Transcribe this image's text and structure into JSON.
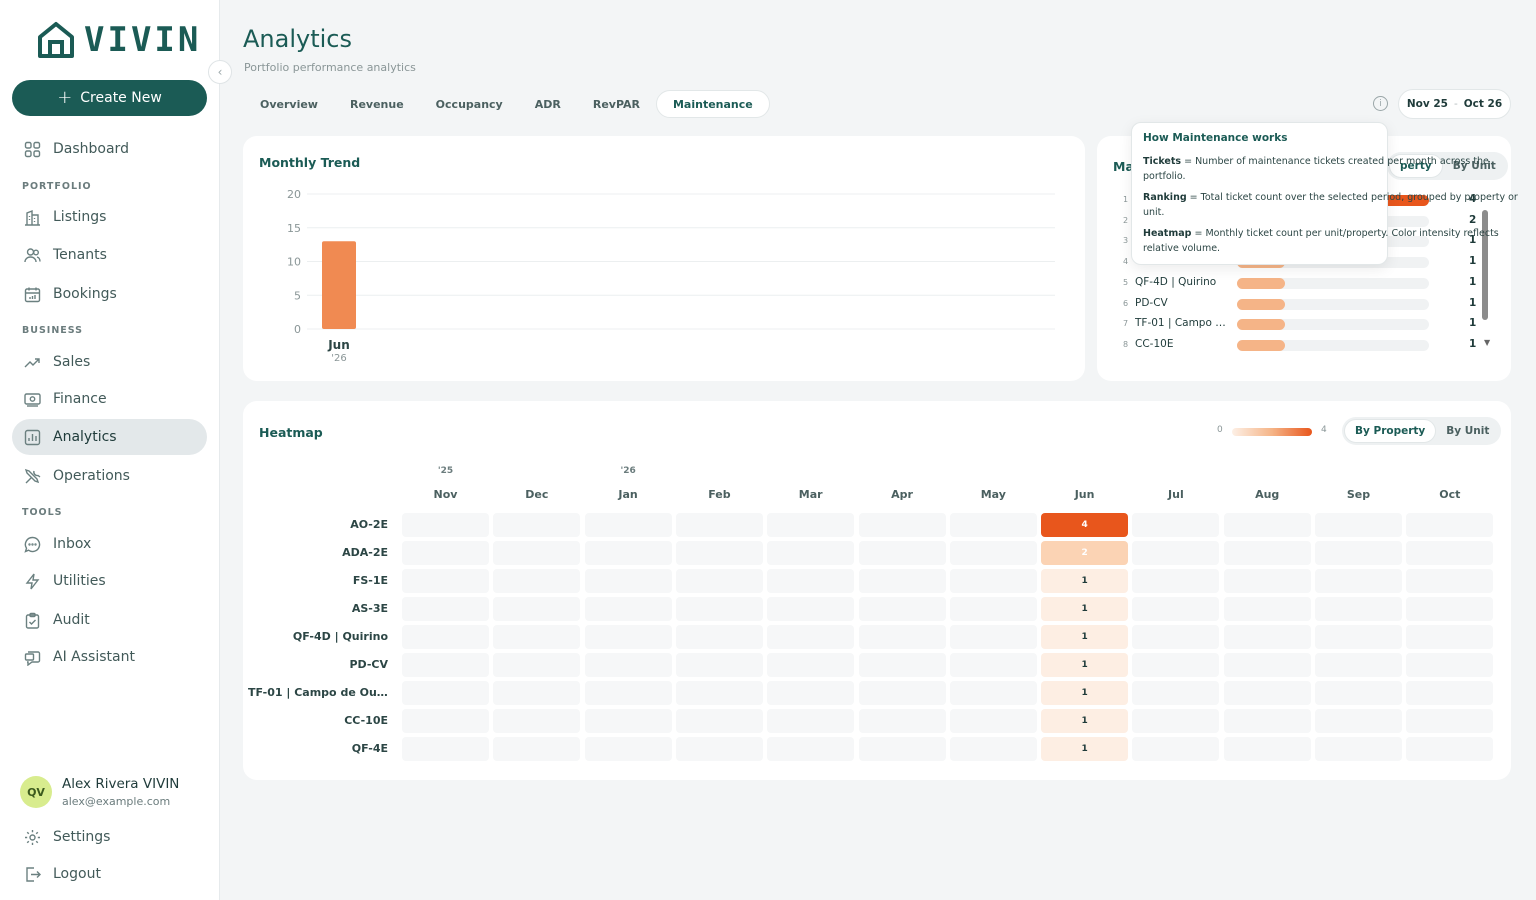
{
  "brand": {
    "name": "VIVIN",
    "accent": "#1b5b55",
    "heat_color": "#e8561c"
  },
  "sidebar": {
    "create_label": "Create New",
    "collapse_icon": "chevron-left-icon",
    "items": [
      {
        "label": "Dashboard",
        "icon": "grid-icon"
      },
      {
        "label": "Listings",
        "icon": "building-icon"
      },
      {
        "label": "Tenants",
        "icon": "users-icon"
      },
      {
        "label": "Bookings",
        "icon": "calendar-icon"
      },
      {
        "label": "Sales",
        "icon": "trend-icon"
      },
      {
        "label": "Finance",
        "icon": "cash-icon"
      },
      {
        "label": "Analytics",
        "icon": "bar-chart-icon"
      },
      {
        "label": "Operations",
        "icon": "tools-icon"
      },
      {
        "label": "Inbox",
        "icon": "chat-icon"
      },
      {
        "label": "Utilities",
        "icon": "bolt-icon"
      },
      {
        "label": "Audit",
        "icon": "clipboard-icon"
      },
      {
        "label": "AI Assistant",
        "icon": "ai-chat-icon"
      }
    ],
    "sections": [
      "PORTFOLIO",
      "BUSINESS",
      "TOOLS"
    ],
    "user": {
      "initials": "QV",
      "name": "Alex Rivera VIVIN",
      "email": "alex@example.com"
    },
    "settings_label": "Settings",
    "logout_label": "Logout"
  },
  "header": {
    "title": "Analytics",
    "subtitle": "Portfolio performance analytics",
    "tabs": [
      "Overview",
      "Revenue",
      "Occupancy",
      "ADR",
      "RevPAR",
      "Maintenance"
    ],
    "active_tab": "Maintenance",
    "date_from": "Nov 25",
    "date_sep": "-",
    "date_to": "Oct 26"
  },
  "trend": {
    "title": "Monthly Trend",
    "chart_data": {
      "type": "bar",
      "categories": [
        "Jun"
      ],
      "category_sublabels": [
        "'26"
      ],
      "values": [
        13
      ],
      "ylim": [
        0,
        20
      ],
      "yticks": [
        0,
        5,
        10,
        15,
        20
      ],
      "grid": true
    }
  },
  "ranking": {
    "title_visible": "Ma",
    "toggle": [
      "By Property",
      "By Unit"
    ],
    "toggle_visible": [
      "perty",
      "By Unit"
    ],
    "rows": [
      {
        "rank": "1",
        "name": "",
        "count": 4
      },
      {
        "rank": "2",
        "name": "",
        "count": 2
      },
      {
        "rank": "3",
        "name": "",
        "count": 1
      },
      {
        "rank": "4",
        "name": "",
        "count": 1
      },
      {
        "rank": "5",
        "name": "QF-4D | Quirino",
        "count": 1
      },
      {
        "rank": "6",
        "name": "PD-CV",
        "count": 1
      },
      {
        "rank": "7",
        "name": "TF-01 | Campo de Ou...",
        "count": 1
      },
      {
        "rank": "8",
        "name": "CC-10E",
        "count": 1
      }
    ],
    "max": 4
  },
  "tooltip": {
    "title": "How Maintenance works",
    "lines": [
      {
        "term": "Tickets",
        "text": " = Number of maintenance tickets created per month across the portfolio."
      },
      {
        "term": "Ranking",
        "text": " = Total ticket count over the selected period, grouped by property or unit."
      },
      {
        "term": "Heatmap",
        "text": " = Monthly ticket count per unit/property. Color intensity reflects relative volume."
      }
    ]
  },
  "heatmap": {
    "title": "Heatmap",
    "legend_min": "0",
    "legend_max": "4",
    "toggle": [
      "By Property",
      "By Unit"
    ],
    "active_toggle": "By Property",
    "months": [
      "Nov",
      "Dec",
      "Jan",
      "Feb",
      "Mar",
      "Apr",
      "May",
      "Jun",
      "Jul",
      "Aug",
      "Sep",
      "Oct"
    ],
    "years": [
      "'25",
      "",
      "'26",
      "",
      "",
      "",
      "",
      "",
      "",
      "",
      "",
      ""
    ],
    "rows": [
      {
        "label": "AO-2E",
        "values": [
          0,
          0,
          0,
          0,
          0,
          0,
          0,
          4,
          0,
          0,
          0,
          0
        ]
      },
      {
        "label": "ADA-2E",
        "values": [
          0,
          0,
          0,
          0,
          0,
          0,
          0,
          2,
          0,
          0,
          0,
          0
        ]
      },
      {
        "label": "FS-1E",
        "values": [
          0,
          0,
          0,
          0,
          0,
          0,
          0,
          1,
          0,
          0,
          0,
          0
        ]
      },
      {
        "label": "AS-3E",
        "values": [
          0,
          0,
          0,
          0,
          0,
          0,
          0,
          1,
          0,
          0,
          0,
          0
        ]
      },
      {
        "label": "QF-4D | Quirino",
        "values": [
          0,
          0,
          0,
          0,
          0,
          0,
          0,
          1,
          0,
          0,
          0,
          0
        ]
      },
      {
        "label": "PD-CV",
        "values": [
          0,
          0,
          0,
          0,
          0,
          0,
          0,
          1,
          0,
          0,
          0,
          0
        ]
      },
      {
        "label": "TF-01 | Campo de Ou...",
        "values": [
          0,
          0,
          0,
          0,
          0,
          0,
          0,
          1,
          0,
          0,
          0,
          0
        ]
      },
      {
        "label": "CC-10E",
        "values": [
          0,
          0,
          0,
          0,
          0,
          0,
          0,
          1,
          0,
          0,
          0,
          0
        ]
      },
      {
        "label": "QF-4E",
        "values": [
          0,
          0,
          0,
          0,
          0,
          0,
          0,
          1,
          0,
          0,
          0,
          0
        ]
      }
    ]
  }
}
